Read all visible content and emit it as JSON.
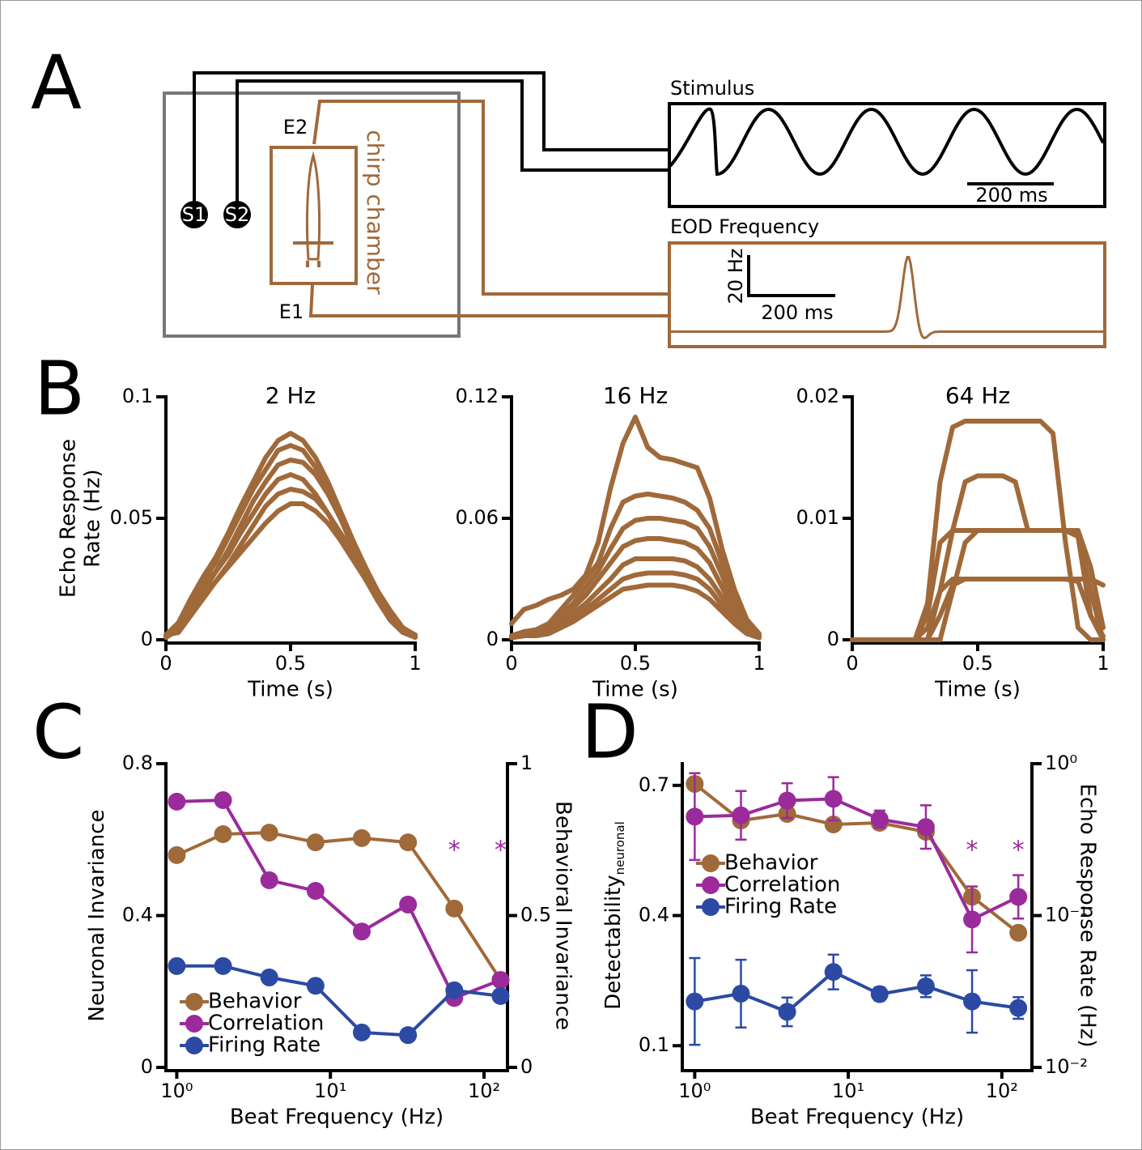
{
  "panel_labels": [
    "A",
    "B",
    "C",
    "D"
  ],
  "diagram": {
    "stim_electrodes": [
      "S1",
      "S2"
    ],
    "rec_electrodes": [
      "E2",
      "E1"
    ],
    "chamber": "chirp chamber",
    "stimulus": {
      "title": "Stimulus",
      "time_scale": "200 ms"
    },
    "eod": {
      "title": "EOD Frequency",
      "freq_scale": "20 Hz",
      "time_scale": "200 ms"
    }
  },
  "chart_data": [
    {
      "type": "line",
      "title": "2 Hz",
      "xlabel": "Time (s)",
      "ylabel": [
        "Echo Response",
        "Rate (Hz)"
      ],
      "x": [
        0,
        0.05,
        0.1,
        0.15,
        0.2,
        0.25,
        0.3,
        0.35,
        0.4,
        0.45,
        0.5,
        0.55,
        0.6,
        0.65,
        0.7,
        0.75,
        0.8,
        0.85,
        0.9,
        0.95,
        1
      ],
      "xlim": [
        0,
        1
      ],
      "xticks": [
        0,
        0.5,
        1
      ],
      "ylim": [
        0,
        0.1
      ],
      "yticks": [
        0,
        0.05,
        0.1
      ],
      "color": "#a0693a",
      "series": [
        {
          "values": [
            0.002,
            0.007,
            0.017,
            0.026,
            0.034,
            0.044,
            0.055,
            0.065,
            0.075,
            0.082,
            0.085,
            0.082,
            0.075,
            0.065,
            0.053,
            0.041,
            0.03,
            0.019,
            0.01,
            0.004,
            0.002
          ]
        },
        {
          "values": [
            0.001,
            0.006,
            0.016,
            0.024,
            0.032,
            0.042,
            0.052,
            0.062,
            0.07,
            0.078,
            0.08,
            0.078,
            0.071,
            0.061,
            0.05,
            0.038,
            0.028,
            0.018,
            0.01,
            0.004,
            0.002
          ]
        },
        {
          "values": [
            0.002,
            0.004,
            0.012,
            0.02,
            0.028,
            0.037,
            0.047,
            0.057,
            0.065,
            0.072,
            0.074,
            0.073,
            0.068,
            0.06,
            0.05,
            0.04,
            0.03,
            0.02,
            0.012,
            0.005,
            0.002
          ]
        },
        {
          "values": [
            0.001,
            0.005,
            0.014,
            0.022,
            0.028,
            0.035,
            0.044,
            0.052,
            0.06,
            0.066,
            0.068,
            0.066,
            0.06,
            0.052,
            0.043,
            0.034,
            0.025,
            0.016,
            0.008,
            0.003,
            0.001
          ]
        },
        {
          "values": [
            0.002,
            0.003,
            0.01,
            0.017,
            0.024,
            0.031,
            0.039,
            0.047,
            0.055,
            0.06,
            0.062,
            0.061,
            0.058,
            0.052,
            0.044,
            0.036,
            0.027,
            0.018,
            0.01,
            0.004,
            0.002
          ]
        },
        {
          "values": [
            0.001,
            0.004,
            0.011,
            0.018,
            0.024,
            0.03,
            0.036,
            0.042,
            0.048,
            0.053,
            0.056,
            0.056,
            0.053,
            0.048,
            0.041,
            0.033,
            0.025,
            0.017,
            0.009,
            0.004,
            0.001
          ]
        }
      ]
    },
    {
      "type": "line",
      "title": "16 Hz",
      "xlabel": "Time (s)",
      "x": [
        0,
        0.05,
        0.1,
        0.15,
        0.2,
        0.25,
        0.3,
        0.35,
        0.4,
        0.45,
        0.5,
        0.55,
        0.6,
        0.65,
        0.7,
        0.75,
        0.8,
        0.85,
        0.9,
        0.95,
        1
      ],
      "xlim": [
        0,
        1
      ],
      "xticks": [
        0,
        0.5,
        1
      ],
      "ylim": [
        0,
        0.12
      ],
      "yticks": [
        0,
        0.06,
        0.12
      ],
      "color": "#a0693a",
      "series": [
        {
          "values": [
            0.008,
            0.015,
            0.017,
            0.02,
            0.022,
            0.025,
            0.032,
            0.048,
            0.075,
            0.097,
            0.11,
            0.095,
            0.09,
            0.089,
            0.087,
            0.085,
            0.07,
            0.045,
            0.025,
            0.01,
            0.003
          ]
        },
        {
          "values": [
            0.002,
            0.004,
            0.005,
            0.008,
            0.015,
            0.022,
            0.03,
            0.038,
            0.055,
            0.068,
            0.071,
            0.072,
            0.071,
            0.07,
            0.068,
            0.064,
            0.055,
            0.038,
            0.02,
            0.008,
            0.002
          ]
        },
        {
          "values": [
            0.001,
            0.003,
            0.004,
            0.006,
            0.012,
            0.018,
            0.026,
            0.034,
            0.045,
            0.055,
            0.059,
            0.06,
            0.06,
            0.059,
            0.058,
            0.055,
            0.046,
            0.032,
            0.017,
            0.006,
            0.001
          ]
        },
        {
          "values": [
            0.002,
            0.002,
            0.003,
            0.005,
            0.01,
            0.016,
            0.022,
            0.03,
            0.038,
            0.046,
            0.049,
            0.05,
            0.05,
            0.049,
            0.048,
            0.045,
            0.038,
            0.026,
            0.014,
            0.005,
            0.002
          ]
        },
        {
          "values": [
            0.001,
            0.002,
            0.003,
            0.004,
            0.008,
            0.013,
            0.018,
            0.024,
            0.03,
            0.037,
            0.04,
            0.04,
            0.04,
            0.04,
            0.039,
            0.036,
            0.03,
            0.021,
            0.012,
            0.004,
            0.001
          ]
        },
        {
          "values": [
            0.002,
            0.003,
            0.003,
            0.004,
            0.007,
            0.011,
            0.015,
            0.02,
            0.025,
            0.03,
            0.032,
            0.033,
            0.033,
            0.033,
            0.032,
            0.03,
            0.025,
            0.017,
            0.009,
            0.004,
            0.002
          ]
        },
        {
          "values": [
            0.001,
            0.002,
            0.002,
            0.003,
            0.006,
            0.009,
            0.013,
            0.017,
            0.021,
            0.025,
            0.026,
            0.027,
            0.027,
            0.027,
            0.026,
            0.024,
            0.02,
            0.014,
            0.008,
            0.003,
            0.001
          ]
        }
      ]
    },
    {
      "type": "line",
      "title": "64 Hz",
      "xlabel": "Time (s)",
      "x": [
        0,
        0.05,
        0.1,
        0.15,
        0.2,
        0.25,
        0.3,
        0.35,
        0.4,
        0.45,
        0.5,
        0.55,
        0.6,
        0.65,
        0.7,
        0.75,
        0.8,
        0.85,
        0.9,
        0.95,
        1
      ],
      "xlim": [
        0,
        1
      ],
      "xticks": [
        0,
        0.5,
        1
      ],
      "ylim": [
        0,
        0.02
      ],
      "yticks": [
        0,
        0.01,
        0.02
      ],
      "color": "#a0693a",
      "series": [
        {
          "values": [
            0,
            0,
            0,
            0,
            0,
            0,
            0.003,
            0.013,
            0.0175,
            0.018,
            0.018,
            0.018,
            0.018,
            0.018,
            0.018,
            0.018,
            0.017,
            0.008,
            0.001,
            0,
            0
          ]
        },
        {
          "values": [
            0,
            0,
            0,
            0,
            0,
            0,
            0,
            0.004,
            0.009,
            0.013,
            0.0135,
            0.0135,
            0.0135,
            0.013,
            0.009,
            0.009,
            0.009,
            0.009,
            0.009,
            0.004,
            0
          ]
        },
        {
          "values": [
            0,
            0,
            0,
            0,
            0,
            0,
            0.002,
            0.008,
            0.009,
            0.009,
            0.009,
            0.009,
            0.009,
            0.009,
            0.009,
            0.009,
            0.009,
            0.009,
            0.0085,
            0.002,
            0
          ]
        },
        {
          "values": [
            0,
            0,
            0,
            0,
            0,
            0,
            0,
            0,
            0.004,
            0.008,
            0.009,
            0.009,
            0.009,
            0.009,
            0.009,
            0.009,
            0.009,
            0.009,
            0.009,
            0.006,
            0.001
          ]
        },
        {
          "values": [
            0,
            0,
            0,
            0,
            0,
            0,
            0.001,
            0.004,
            0.005,
            0.005,
            0.005,
            0.005,
            0.005,
            0.005,
            0.005,
            0.005,
            0.005,
            0.005,
            0.005,
            0.005,
            0.0045
          ]
        },
        {
          "values": [
            0,
            0,
            0,
            0,
            0,
            0,
            0,
            0.002,
            0.0045,
            0.005,
            0.005,
            0.005,
            0.005,
            0.005,
            0.005,
            0.005,
            0.005,
            0.005,
            0.0048,
            0.002,
            0.0003
          ]
        }
      ]
    },
    {
      "type": "line",
      "xscale": "log",
      "x": [
        1,
        2,
        4,
        8,
        16,
        32,
        64,
        128
      ],
      "xlim": [
        0.85,
        142
      ],
      "xticks": [
        {
          "value": 1,
          "label": "10⁰"
        },
        {
          "value": 10,
          "label": "10¹"
        },
        {
          "value": 100,
          "label": "10²"
        }
      ],
      "xlabel": "Beat Frequency (Hz)",
      "ylabel": "Neuronal Invariance",
      "y2label": "Behavioral Invariance",
      "ylim": [
        0,
        0.8
      ],
      "yticks": [
        0,
        0.4,
        0.8
      ],
      "y2lim": [
        0,
        1
      ],
      "y2ticks": [
        0,
        0.5,
        1
      ],
      "markers": true,
      "legend": "lower left",
      "series": [
        {
          "name": "Behavior",
          "color": "#a0693a",
          "axis": "y2",
          "values": [
            0.699,
            0.768,
            0.773,
            0.741,
            0.755,
            0.741,
            0.523,
            0.288
          ]
        },
        {
          "name": "Correlation",
          "color": "#9b2a9b",
          "values": [
            0.7,
            0.704,
            0.493,
            0.465,
            0.358,
            0.429,
            0.183,
            0.23
          ]
        },
        {
          "name": "Firing Rate",
          "color": "#2c4aa3",
          "values": [
            0.267,
            0.267,
            0.237,
            0.215,
            0.092,
            0.085,
            0.203,
            0.188
          ]
        }
      ],
      "annotations": [
        {
          "text": "*",
          "x": 64,
          "color": "#9b2a9b"
        },
        {
          "text": "*",
          "x": 128,
          "color": "#9b2a9b"
        }
      ]
    },
    {
      "type": "line",
      "xscale": "log",
      "x": [
        1,
        2,
        4,
        8,
        16,
        32,
        64,
        128
      ],
      "xlim": [
        0.83,
        157
      ],
      "xticks": [
        {
          "value": 1,
          "label": "10⁰"
        },
        {
          "value": 10,
          "label": "10¹"
        },
        {
          "value": 100,
          "label": "10²"
        }
      ],
      "xlabel": "Beat Frequency (Hz)",
      "ylabel": "Detectability",
      "ylabel_subscript": "neuronal",
      "y2label": "Echo Response  Rate (Hz)",
      "ylim": [
        0.05,
        0.75
      ],
      "yticks": [
        0.1,
        0.4,
        0.7
      ],
      "y2scale": "log",
      "y2lim": [
        0.01,
        1
      ],
      "y2ticks": [
        {
          "value": 0.01,
          "label": "10⁻²"
        },
        {
          "value": 0.1,
          "label": "10⁻¹"
        },
        {
          "value": 1,
          "label": "10⁰"
        }
      ],
      "markers": true,
      "legend": "center left",
      "series": [
        {
          "name": "Behavior",
          "color": "#a0693a",
          "axis": "y2",
          "values": [
            0.736,
            0.423,
            0.467,
            0.398,
            0.408,
            0.356,
            0.133,
            0.077
          ]
        },
        {
          "name": "Correlation",
          "color": "#9b2a9b",
          "values": [
            0.628,
            0.631,
            0.665,
            0.669,
            0.622,
            0.604,
            0.391,
            0.443
          ],
          "errors": [
            0.1,
            0.056,
            0.04,
            0.05,
            0.02,
            0.05,
            0.076,
            0.05
          ]
        },
        {
          "name": "Firing Rate",
          "color": "#2c4aa3",
          "values": [
            0.202,
            0.22,
            0.178,
            0.27,
            0.219,
            0.237,
            0.202,
            0.187
          ],
          "errors": [
            0.1,
            0.078,
            0.033,
            0.04,
            0.015,
            0.025,
            0.072,
            0.025
          ]
        }
      ],
      "annotations": [
        {
          "text": "*",
          "x": 64,
          "color": "#9b2a9b"
        },
        {
          "text": "*",
          "x": 128,
          "color": "#9b2a9b"
        }
      ]
    }
  ]
}
